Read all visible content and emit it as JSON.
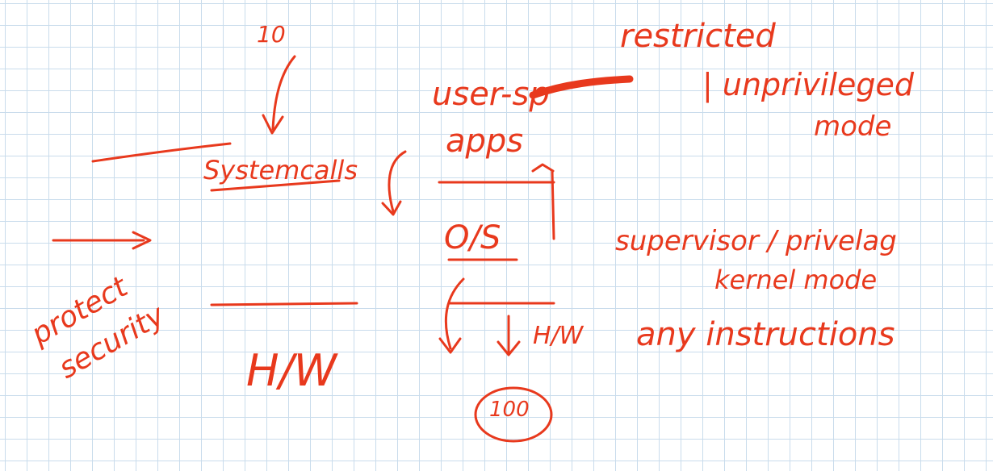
{
  "canvas": {
    "background": "#ffffff",
    "grid_color": "#c9dcec",
    "ink_color": "#e8391d"
  },
  "labels": {
    "io_count": "10",
    "restricted": "restricted",
    "user_space": "user-sp",
    "unprivileged": "| unprivileged",
    "mode_top": "mode",
    "apps": "apps",
    "system_calls": "Systemcalls",
    "os": "O/S",
    "supervisor": "supervisor / privelag",
    "kernel_mode": "kernel mode",
    "protect": "protect",
    "security": "security",
    "hw_left": "H/W",
    "hw_right": "H/W",
    "any_instructions": "any instructions",
    "hundred": "100"
  }
}
